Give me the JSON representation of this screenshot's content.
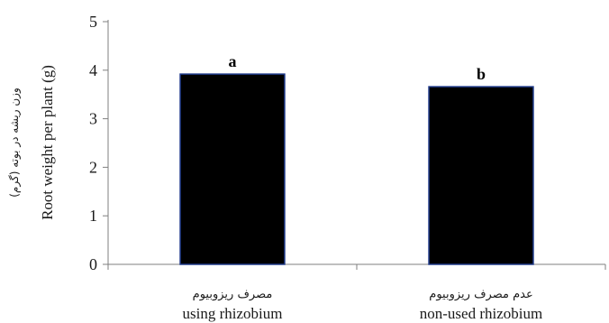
{
  "chart_data": {
    "type": "bar",
    "categories": [
      {
        "fa": "مصرف ریزوبیوم",
        "en": "using rhizobium"
      },
      {
        "fa": "عدم مصرف ریزوبیوم",
        "en": "non-used rhizobium"
      }
    ],
    "values": [
      3.92,
      3.66
    ],
    "significance_letters": [
      "a",
      "b"
    ],
    "ylabel_fa": "وزن ریشه در بوته (گرم)",
    "ylabel_en": "Root weight per plant (g)",
    "ylim": [
      0,
      5
    ],
    "yticks": [
      "0",
      "1",
      "2",
      "3",
      "4",
      "5"
    ],
    "grid": false,
    "bar_color": "#000000",
    "bar_edge_color": "#1f3a8a"
  }
}
